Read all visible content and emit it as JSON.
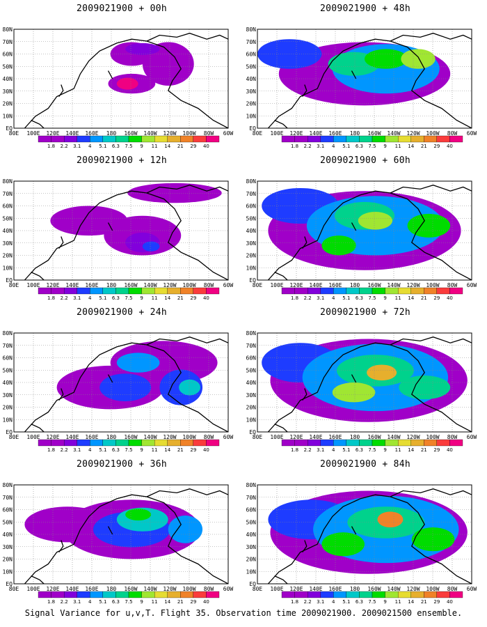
{
  "panels": [
    {
      "title": "2009021900 + 00h"
    },
    {
      "title": "2009021900 + 48h"
    },
    {
      "title": "2009021900 + 12h"
    },
    {
      "title": "2009021900 + 60h"
    },
    {
      "title": "2009021900 + 24h"
    },
    {
      "title": "2009021900 + 72h"
    },
    {
      "title": "2009021900 + 36h"
    },
    {
      "title": "2009021900 + 84h"
    }
  ],
  "lat_labels": [
    "80N",
    "70N",
    "60N",
    "50N",
    "40N",
    "30N",
    "20N",
    "10N",
    "EQ"
  ],
  "lon_labels": [
    "80E",
    "100E",
    "120E",
    "140E",
    "160E",
    "180",
    "160W",
    "140W",
    "120W",
    "100W",
    "80W",
    "60W"
  ],
  "colorbar": {
    "labels": [
      "1.8",
      "2.2",
      "3.1",
      "4",
      "5.1",
      "6.3",
      "7.5",
      "9",
      "11",
      "14",
      "21",
      "29",
      "40"
    ],
    "colors": [
      "#a000c8",
      "#8200dc",
      "#1e3cff",
      "#0096ff",
      "#00c8c8",
      "#00d28c",
      "#00dc00",
      "#a0e632",
      "#e6dc32",
      "#e6af2d",
      "#f08228",
      "#fa3c3c",
      "#f00082"
    ]
  },
  "footer": "Signal Variance for u,v,T. Flight 35. Observation time 2009021900. 2009021500 ensemble."
}
